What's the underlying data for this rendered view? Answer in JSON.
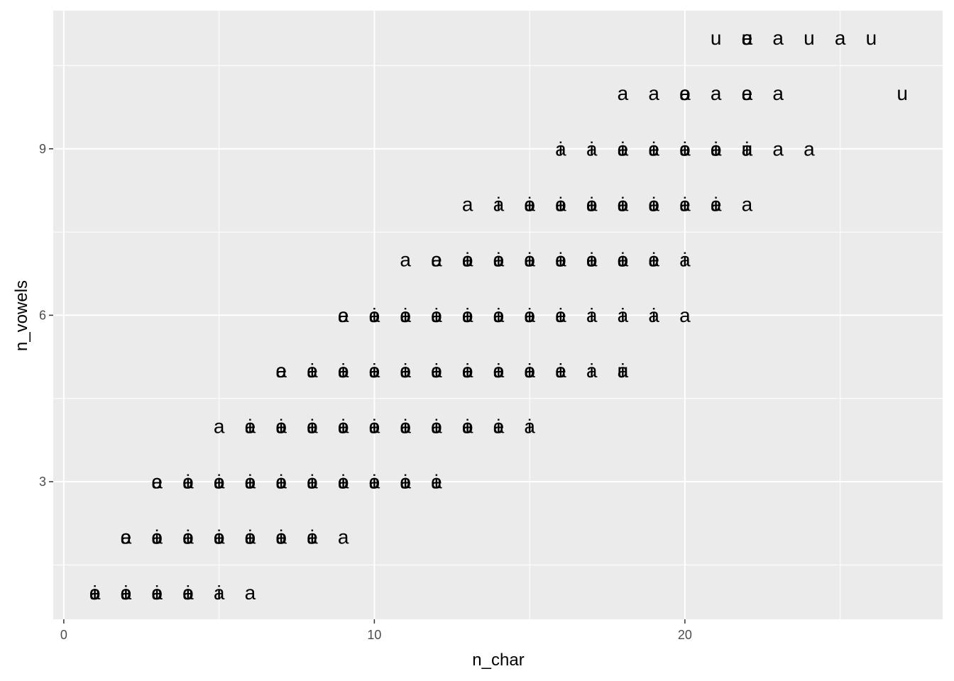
{
  "chart_data": {
    "type": "scatter",
    "x_label": "n_char",
    "y_label": "n_vowels",
    "xlim": [
      -0.34,
      28.3
    ],
    "ylim": [
      0.52,
      11.49
    ],
    "xticks": [
      0,
      10,
      20
    ],
    "yticks": [
      3,
      6,
      9
    ],
    "grid": true,
    "color": "#000000",
    "series": [
      {
        "label": "a",
        "x": [
          1,
          2,
          3,
          4,
          5,
          6,
          2,
          3,
          4,
          5,
          6,
          7,
          8,
          9,
          3,
          4,
          5,
          6,
          7,
          8,
          9,
          10,
          11,
          12,
          5,
          6,
          7,
          8,
          9,
          10,
          11,
          12,
          13,
          14,
          15,
          7,
          8,
          9,
          10,
          11,
          12,
          13,
          14,
          15,
          16,
          17,
          18,
          9,
          10,
          11,
          12,
          13,
          14,
          15,
          16,
          17,
          18,
          19,
          20,
          11,
          12,
          13,
          14,
          15,
          16,
          17,
          18,
          19,
          20,
          13,
          14,
          15,
          16,
          17,
          18,
          19,
          20,
          21,
          22,
          16,
          17,
          18,
          19,
          20,
          21,
          22,
          23,
          24,
          18,
          19,
          20,
          21,
          22,
          23,
          22,
          23,
          25
        ],
        "y": [
          1,
          1,
          1,
          1,
          1,
          1,
          2,
          2,
          2,
          2,
          2,
          2,
          2,
          2,
          3,
          3,
          3,
          3,
          3,
          3,
          3,
          3,
          3,
          3,
          4,
          4,
          4,
          4,
          4,
          4,
          4,
          4,
          4,
          4,
          4,
          5,
          5,
          5,
          5,
          5,
          5,
          5,
          5,
          5,
          5,
          5,
          5,
          6,
          6,
          6,
          6,
          6,
          6,
          6,
          6,
          6,
          6,
          6,
          6,
          7,
          7,
          7,
          7,
          7,
          7,
          7,
          7,
          7,
          7,
          8,
          8,
          8,
          8,
          8,
          8,
          8,
          8,
          8,
          8,
          9,
          9,
          9,
          9,
          9,
          9,
          9,
          9,
          9,
          10,
          10,
          10,
          10,
          10,
          10,
          11,
          11,
          11
        ]
      },
      {
        "label": "e",
        "x": [
          1,
          2,
          3,
          4,
          2,
          3,
          4,
          5,
          6,
          7,
          8,
          3,
          4,
          5,
          6,
          7,
          8,
          9,
          10,
          11,
          12,
          6,
          7,
          8,
          9,
          10,
          11,
          12,
          13,
          14,
          7,
          8,
          9,
          10,
          11,
          12,
          13,
          14,
          15,
          16,
          9,
          10,
          11,
          12,
          13,
          14,
          15,
          16,
          12,
          13,
          14,
          15,
          16,
          17,
          18,
          19,
          15,
          16,
          17,
          18,
          19,
          20,
          21,
          18,
          19,
          20,
          21,
          20,
          22,
          22
        ],
        "y": [
          1,
          1,
          1,
          1,
          2,
          2,
          2,
          2,
          2,
          2,
          2,
          3,
          3,
          3,
          3,
          3,
          3,
          3,
          3,
          3,
          3,
          4,
          4,
          4,
          4,
          4,
          4,
          4,
          4,
          4,
          5,
          5,
          5,
          5,
          5,
          5,
          5,
          5,
          5,
          5,
          6,
          6,
          6,
          6,
          6,
          6,
          6,
          6,
          7,
          7,
          7,
          7,
          7,
          7,
          7,
          7,
          8,
          8,
          8,
          8,
          8,
          8,
          8,
          9,
          9,
          9,
          9,
          10,
          10,
          11
        ]
      },
      {
        "label": "i",
        "x": [
          1,
          2,
          3,
          4,
          5,
          3,
          4,
          5,
          6,
          7,
          8,
          4,
          5,
          6,
          7,
          8,
          9,
          10,
          11,
          12,
          6,
          7,
          8,
          9,
          10,
          11,
          12,
          13,
          14,
          15,
          8,
          9,
          10,
          11,
          12,
          13,
          14,
          15,
          16,
          17,
          18,
          10,
          11,
          12,
          13,
          14,
          15,
          16,
          17,
          18,
          19,
          13,
          14,
          15,
          16,
          17,
          18,
          19,
          20,
          14,
          15,
          16,
          17,
          18,
          19,
          20,
          21,
          16,
          17,
          18,
          19,
          20,
          21,
          22
        ],
        "y": [
          1,
          1,
          1,
          1,
          1,
          2,
          2,
          2,
          2,
          2,
          2,
          3,
          3,
          3,
          3,
          3,
          3,
          3,
          3,
          3,
          4,
          4,
          4,
          4,
          4,
          4,
          4,
          4,
          4,
          4,
          5,
          5,
          5,
          5,
          5,
          5,
          5,
          5,
          5,
          5,
          5,
          6,
          6,
          6,
          6,
          6,
          6,
          6,
          6,
          6,
          6,
          7,
          7,
          7,
          7,
          7,
          7,
          7,
          7,
          8,
          8,
          8,
          8,
          8,
          8,
          8,
          8,
          9,
          9,
          9,
          9,
          9,
          9,
          9
        ]
      },
      {
        "label": "o",
        "x": [
          1,
          2,
          3,
          4,
          3,
          4,
          5,
          6,
          7,
          4,
          5,
          6,
          7,
          8,
          9,
          10,
          11,
          7,
          8,
          9,
          10,
          11,
          12,
          13,
          9,
          10,
          11,
          12,
          13,
          14,
          15,
          10,
          11,
          12,
          13,
          14,
          15,
          13,
          14,
          15,
          16,
          17,
          18,
          15,
          16,
          17,
          18,
          19,
          20,
          21,
          20
        ],
        "y": [
          1,
          1,
          1,
          1,
          2,
          2,
          2,
          2,
          2,
          3,
          3,
          3,
          3,
          3,
          3,
          3,
          3,
          4,
          4,
          4,
          4,
          4,
          4,
          4,
          5,
          5,
          5,
          5,
          5,
          5,
          5,
          6,
          6,
          6,
          6,
          6,
          6,
          7,
          7,
          7,
          7,
          7,
          7,
          8,
          8,
          8,
          8,
          8,
          9,
          9,
          10
        ]
      },
      {
        "label": "u",
        "x": [
          18,
          22,
          27,
          21,
          22,
          24,
          26
        ],
        "y": [
          5,
          9,
          10,
          11,
          11,
          11,
          11
        ]
      }
    ]
  }
}
